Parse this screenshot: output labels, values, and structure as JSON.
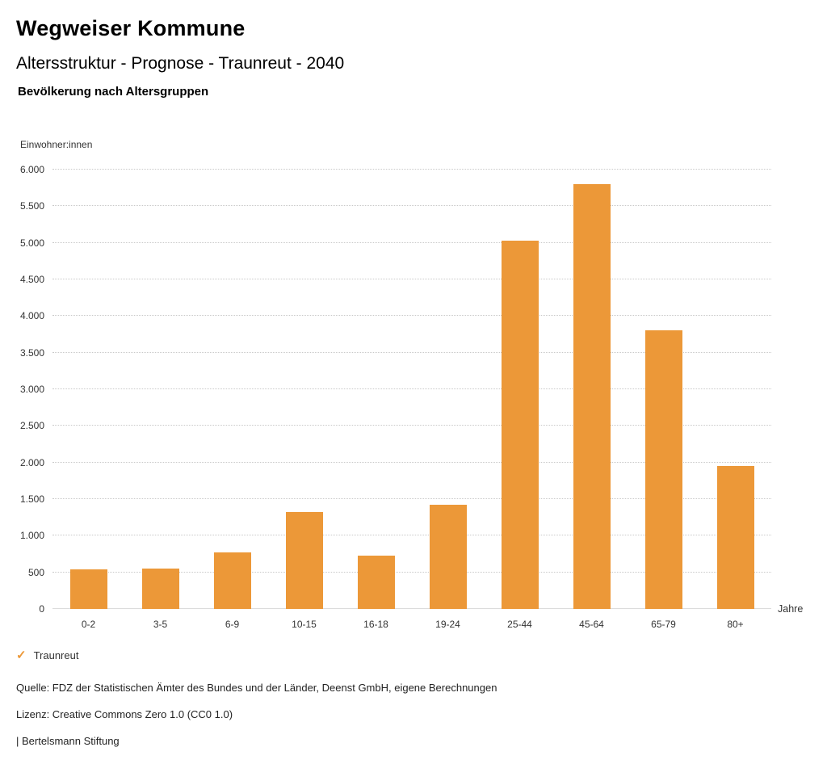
{
  "header": {
    "title": "Wegweiser Kommune",
    "subtitle": "Altersstruktur - Prognose - Traunreut - 2040",
    "chart_heading": "Bevölkerung nach Altersgruppen"
  },
  "chart_data": {
    "type": "bar",
    "title": "Bevölkerung nach Altersgruppen",
    "unit_label": "Einwohner:innen",
    "xlabel": "Jahre",
    "categories": [
      "0-2",
      "3-5",
      "6-9",
      "10-15",
      "16-18",
      "19-24",
      "25-44",
      "45-64",
      "65-79",
      "80+"
    ],
    "values": [
      540,
      550,
      775,
      1320,
      730,
      1420,
      5030,
      5800,
      3810,
      1950
    ],
    "ylim": [
      0,
      6000
    ],
    "ytick_step": 500,
    "ytick_labels": [
      "0",
      "500",
      "1.000",
      "1.500",
      "2.000",
      "2.500",
      "3.000",
      "3.500",
      "4.000",
      "4.500",
      "5.000",
      "5.500",
      "6.000"
    ],
    "bar_color": "#EC9838",
    "grid": "dotted-horizontal",
    "legend": {
      "position": "bottom-left",
      "items": [
        {
          "label": "Traunreut",
          "marker": "check",
          "color": "#EC9838"
        }
      ]
    }
  },
  "footer": {
    "source": "Quelle: FDZ der Statistischen Ämter des Bundes und der Länder, Deenst GmbH, eigene Berechnungen",
    "license": "Lizenz: Creative Commons Zero 1.0 (CC0 1.0)",
    "attribution": "| Bertelsmann Stiftung"
  }
}
